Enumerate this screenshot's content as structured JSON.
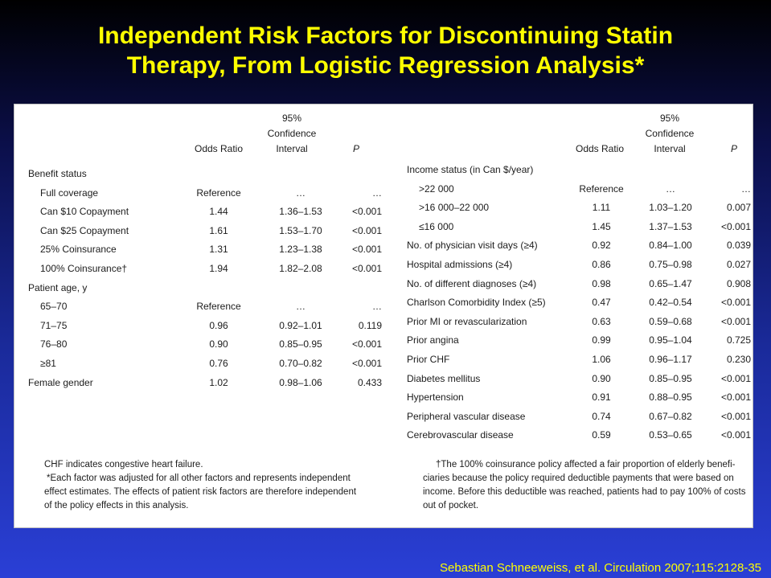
{
  "title_line1": "Independent Risk Factors for Discontinuing Statin",
  "title_line2": "Therapy, From Logistic Regression Analysis*",
  "headers": {
    "ci_line1": "95%",
    "ci_line2": "Confidence",
    "ci_line3": "Interval",
    "odds": "Odds Ratio",
    "p": "P"
  },
  "left_rows": [
    {
      "label": "Benefit status",
      "or": "",
      "ci": "",
      "p": "",
      "indent": false
    },
    {
      "label": "Full coverage",
      "or": "Reference",
      "ci": "…",
      "p": "…",
      "indent": true
    },
    {
      "label": "Can $10 Copayment",
      "or": "1.44",
      "ci": "1.36–1.53",
      "p": "<0.001",
      "indent": true
    },
    {
      "label": "Can $25 Copayment",
      "or": "1.61",
      "ci": "1.53–1.70",
      "p": "<0.001",
      "indent": true
    },
    {
      "label": "25% Coinsurance",
      "or": "1.31",
      "ci": "1.23–1.38",
      "p": "<0.001",
      "indent": true
    },
    {
      "label": "100% Coinsurance†",
      "or": "1.94",
      "ci": "1.82–2.08",
      "p": "<0.001",
      "indent": true
    },
    {
      "label": "Patient age, y",
      "or": "",
      "ci": "",
      "p": "",
      "indent": false
    },
    {
      "label": "65–70",
      "or": "Reference",
      "ci": "…",
      "p": "…",
      "indent": true
    },
    {
      "label": "71–75",
      "or": "0.96",
      "ci": "0.92–1.01",
      "p": "0.119",
      "indent": true
    },
    {
      "label": "76–80",
      "or": "0.90",
      "ci": "0.85–0.95",
      "p": "<0.001",
      "indent": true
    },
    {
      "label": "≥81",
      "or": "0.76",
      "ci": "0.70–0.82",
      "p": "<0.001",
      "indent": true
    },
    {
      "label": "Female gender",
      "or": "1.02",
      "ci": "0.98–1.06",
      "p": "0.433",
      "indent": false
    }
  ],
  "right_rows": [
    {
      "label": "Income status (in Can $/year)",
      "or": "",
      "ci": "",
      "p": "",
      "indent": false
    },
    {
      "label": ">22 000",
      "or": "Reference",
      "ci": "…",
      "p": "…",
      "indent": true
    },
    {
      "label": ">16 000–22 000",
      "or": "1.11",
      "ci": "1.03–1.20",
      "p": "0.007",
      "indent": true
    },
    {
      "label": "≤16 000",
      "or": "1.45",
      "ci": "1.37–1.53",
      "p": "<0.001",
      "indent": true
    },
    {
      "label": "No. of physician visit days (≥4)",
      "or": "0.92",
      "ci": "0.84–1.00",
      "p": "0.039",
      "indent": false
    },
    {
      "label": "Hospital admissions (≥4)",
      "or": "0.86",
      "ci": "0.75–0.98",
      "p": "0.027",
      "indent": false
    },
    {
      "label": "No. of different diagnoses (≥4)",
      "or": "0.98",
      "ci": "0.65–1.47",
      "p": "0.908",
      "indent": false
    },
    {
      "label": "Charlson Comorbidity Index (≥5)",
      "or": "0.47",
      "ci": "0.42–0.54",
      "p": "<0.001",
      "indent": false
    },
    {
      "label": "Prior MI or revascularization",
      "or": "0.63",
      "ci": "0.59–0.68",
      "p": "<0.001",
      "indent": false
    },
    {
      "label": "Prior angina",
      "or": "0.99",
      "ci": "0.95–1.04",
      "p": "0.725",
      "indent": false
    },
    {
      "label": "Prior CHF",
      "or": "1.06",
      "ci": "0.96–1.17",
      "p": "0.230",
      "indent": false
    },
    {
      "label": "Diabetes mellitus",
      "or": "0.90",
      "ci": "0.85–0.95",
      "p": "<0.001",
      "indent": false
    },
    {
      "label": "Hypertension",
      "or": "0.91",
      "ci": "0.88–0.95",
      "p": "<0.001",
      "indent": false
    },
    {
      "label": "Peripheral vascular disease",
      "or": "0.74",
      "ci": "0.67–0.82",
      "p": "<0.001",
      "indent": false
    },
    {
      "label": "Cerebrovascular disease",
      "or": "0.59",
      "ci": "0.53–0.65",
      "p": "<0.001",
      "indent": false
    }
  ],
  "footnote_left": [
    "CHF indicates congestive heart failure.",
    "*Each factor was adjusted for all other factors and represents independent",
    "effect estimates. The effects of patient risk factors are therefore independent",
    "of the policy effects in this analysis."
  ],
  "footnote_right": [
    "†The 100% coinsurance policy affected a fair proportion of elderly benefi-",
    "ciaries because the policy required deductible payments that were based on",
    "income. Before this deductible was reached, patients had to pay 100% of costs",
    "out of pocket."
  ],
  "citation": "Sebastian Schneeweiss, et al. Circulation 2007;115:2128-35"
}
